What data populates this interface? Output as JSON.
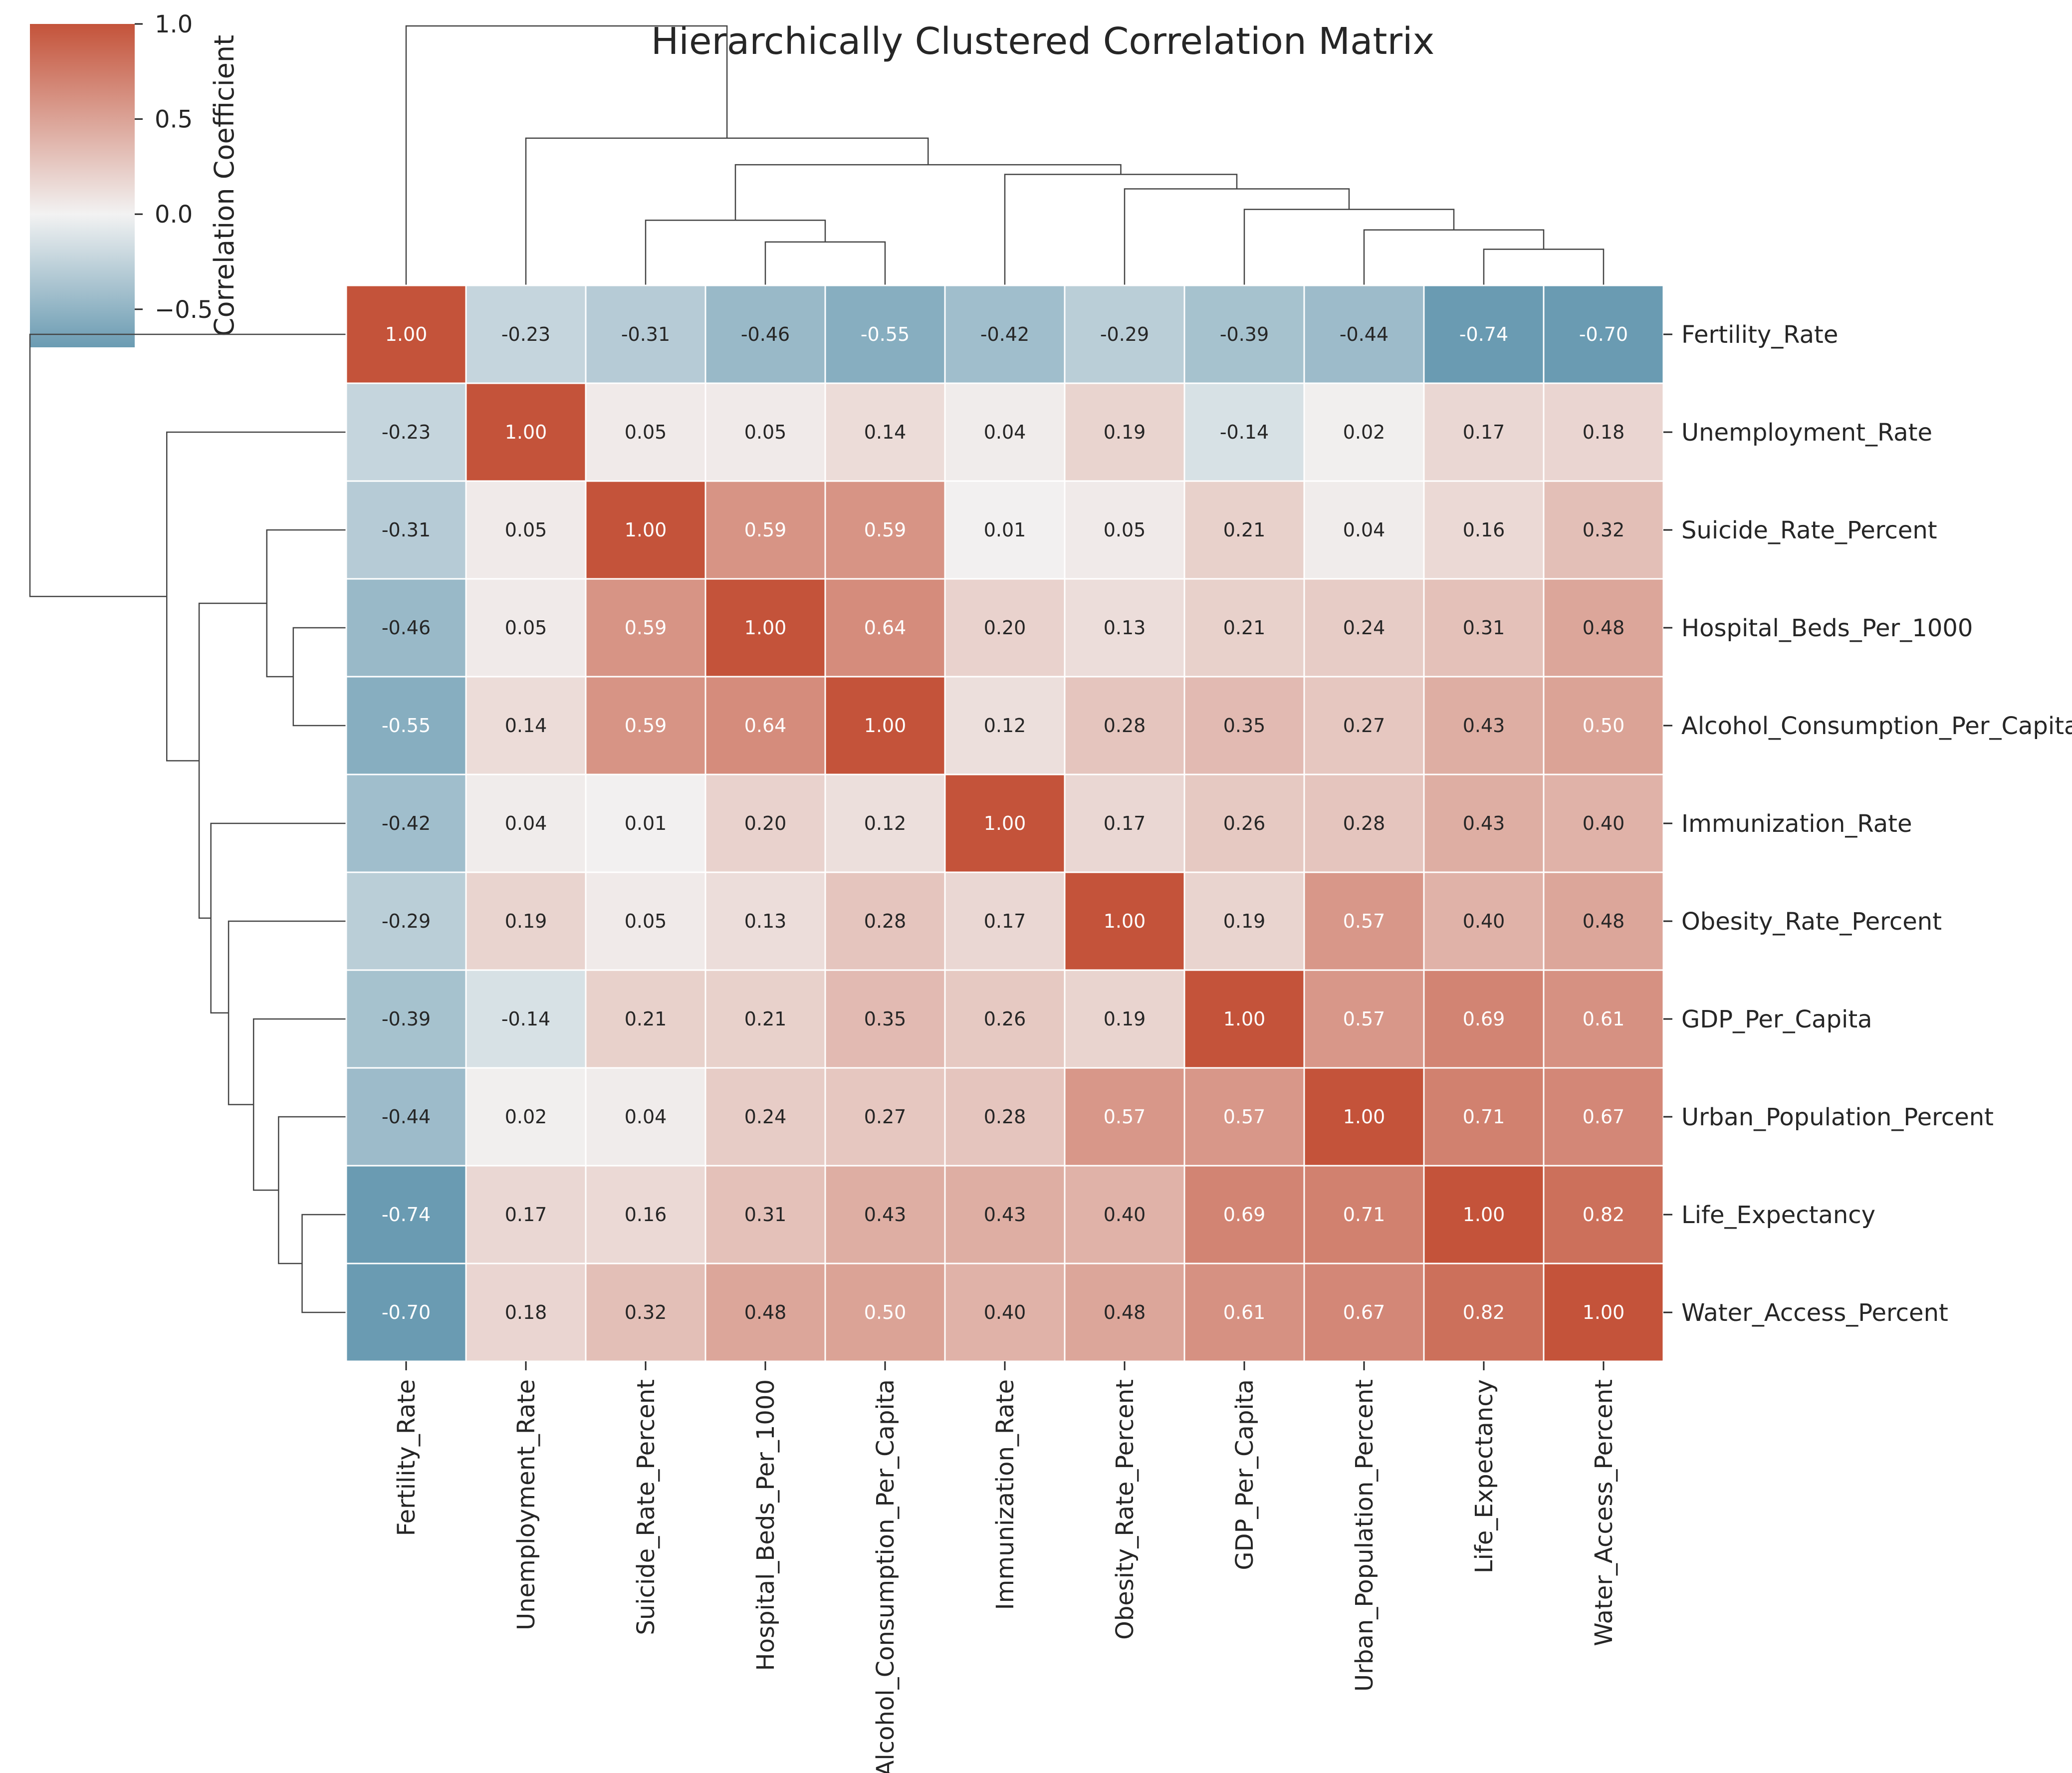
{
  "chart_data": {
    "type": "heatmap",
    "title": "Hierarchically Clustered Correlation Matrix",
    "labels": [
      "Fertility_Rate",
      "Unemployment_Rate",
      "Suicide_Rate_Percent",
      "Hospital_Beds_Per_1000",
      "Alcohol_Consumption_Per_Capita",
      "Immunization_Rate",
      "Obesity_Rate_Percent",
      "GDP_Per_Capita",
      "Urban_Population_Percent",
      "Life_Expectancy",
      "Water_Access_Percent"
    ],
    "values": [
      [
        1.0,
        -0.23,
        -0.31,
        -0.46,
        -0.55,
        -0.42,
        -0.29,
        -0.39,
        -0.44,
        -0.74,
        -0.7
      ],
      [
        -0.23,
        1.0,
        0.05,
        0.05,
        0.14,
        0.04,
        0.19,
        -0.14,
        0.02,
        0.17,
        0.18
      ],
      [
        -0.31,
        0.05,
        1.0,
        0.59,
        0.59,
        0.01,
        0.05,
        0.21,
        0.04,
        0.16,
        0.32
      ],
      [
        -0.46,
        0.05,
        0.59,
        1.0,
        0.64,
        0.2,
        0.13,
        0.21,
        0.24,
        0.31,
        0.48
      ],
      [
        -0.55,
        0.14,
        0.59,
        0.64,
        1.0,
        0.12,
        0.28,
        0.35,
        0.27,
        0.43,
        0.5
      ],
      [
        -0.42,
        0.04,
        0.01,
        0.2,
        0.12,
        1.0,
        0.17,
        0.26,
        0.28,
        0.43,
        0.4
      ],
      [
        -0.29,
        0.19,
        0.05,
        0.13,
        0.28,
        0.17,
        1.0,
        0.19,
        0.57,
        0.4,
        0.48
      ],
      [
        -0.39,
        -0.14,
        0.21,
        0.21,
        0.35,
        0.26,
        0.19,
        1.0,
        0.57,
        0.69,
        0.61
      ],
      [
        -0.44,
        0.02,
        0.04,
        0.24,
        0.27,
        0.28,
        0.57,
        0.57,
        1.0,
        0.71,
        0.67
      ],
      [
        -0.74,
        0.17,
        0.16,
        0.31,
        0.43,
        0.43,
        0.4,
        0.69,
        0.71,
        1.0,
        0.82
      ],
      [
        -0.7,
        0.18,
        0.32,
        0.48,
        0.5,
        0.4,
        0.48,
        0.61,
        0.67,
        0.82,
        1.0
      ]
    ],
    "value_format": "2 decimals",
    "colorbar": {
      "label": "Correlation Coefficient",
      "range": [
        -0.7,
        1.0
      ],
      "ticks": [
        "1.0",
        "0.5",
        "0.0",
        "−0.5"
      ],
      "tick_values": [
        1.0,
        0.5,
        0.0,
        -0.5
      ]
    },
    "colors": {
      "negative": "#6a9bb2",
      "neutral": "#f2f2f2",
      "positive": "#c4533a",
      "text_dark": "#262626",
      "text_light": "#ffffff"
    },
    "dendrogram": {
      "merges": [
        [
          9,
          10,
          0.3
        ],
        [
          3,
          4,
          0.36
        ],
        [
          8,
          11,
          0.46
        ],
        [
          2,
          12,
          0.54
        ],
        [
          7,
          13,
          0.63
        ],
        [
          6,
          15,
          0.8
        ],
        [
          5,
          16,
          0.92
        ],
        [
          14,
          17,
          1.0
        ],
        [
          1,
          18,
          1.22
        ],
        [
          0,
          19,
          2.15
        ]
      ],
      "max_height": 2.15
    }
  }
}
